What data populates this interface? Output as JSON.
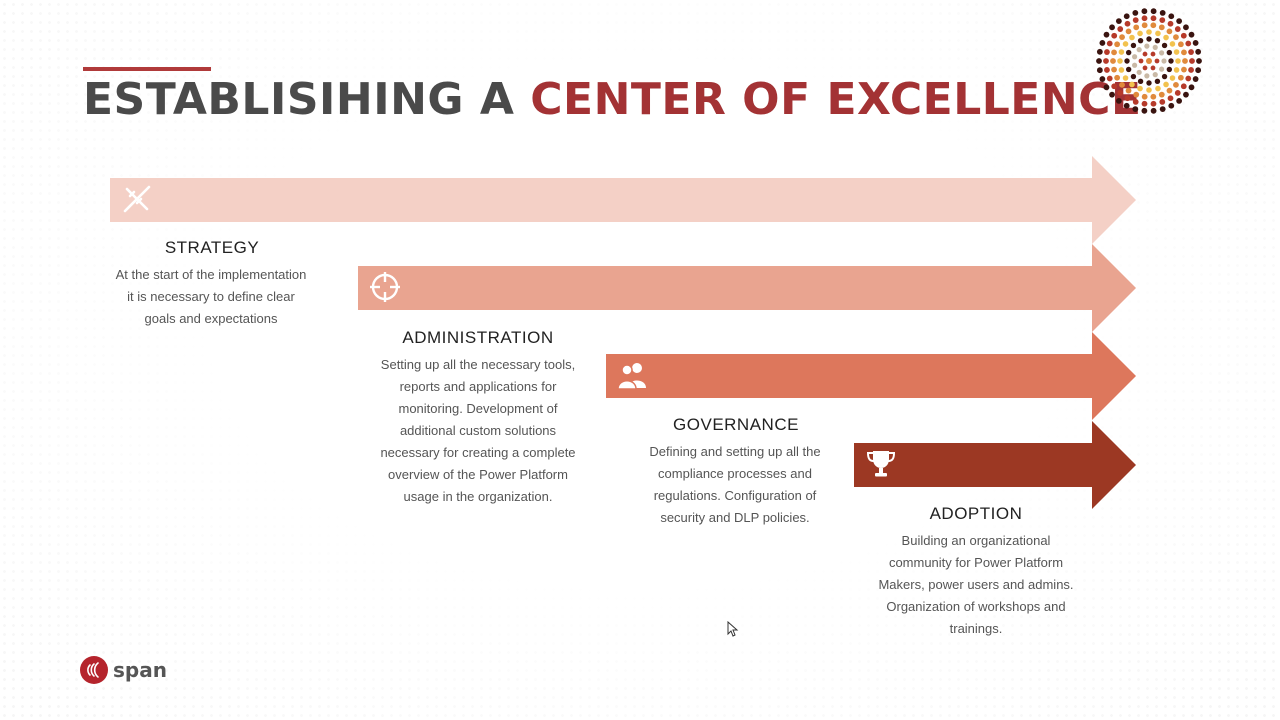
{
  "title": {
    "part1": "ESTABLISIHING A ",
    "part2": "CENTER OF EXCELLENCE"
  },
  "colors": {
    "accent": "#a33234",
    "title_gray": "#4a4a4a",
    "arrow_1": "#f4d0c6",
    "arrow_2": "#e9a490",
    "arrow_3": "#dd775c",
    "arrow_4": "#9c3823"
  },
  "stages": [
    {
      "name": "STRATEGY",
      "icon": "pencil-ruler-icon",
      "description": "At the start of the implementation it is necessary to define clear goals and expectations"
    },
    {
      "name": "ADMINISTRATION",
      "icon": "target-icon",
      "description": "Setting up all the necessary tools, reports and applications for monitoring. Development of additional custom solutions necessary for creating a complete overview of the Power Platform usage in the organization."
    },
    {
      "name": "GOVERNANCE",
      "icon": "users-icon",
      "description": "Defining and setting up all the compliance processes and regulations. Configuration of security and DLP policies."
    },
    {
      "name": "ADOPTION",
      "icon": "trophy-icon",
      "description": "Building an organizational community for Power Platform Makers, power users and admins. Organization of workshops and trainings."
    }
  ],
  "logo": {
    "text": "span",
    "icon": "span-logo-icon"
  },
  "decoration": {
    "icon": "dot-circle-art-icon"
  }
}
